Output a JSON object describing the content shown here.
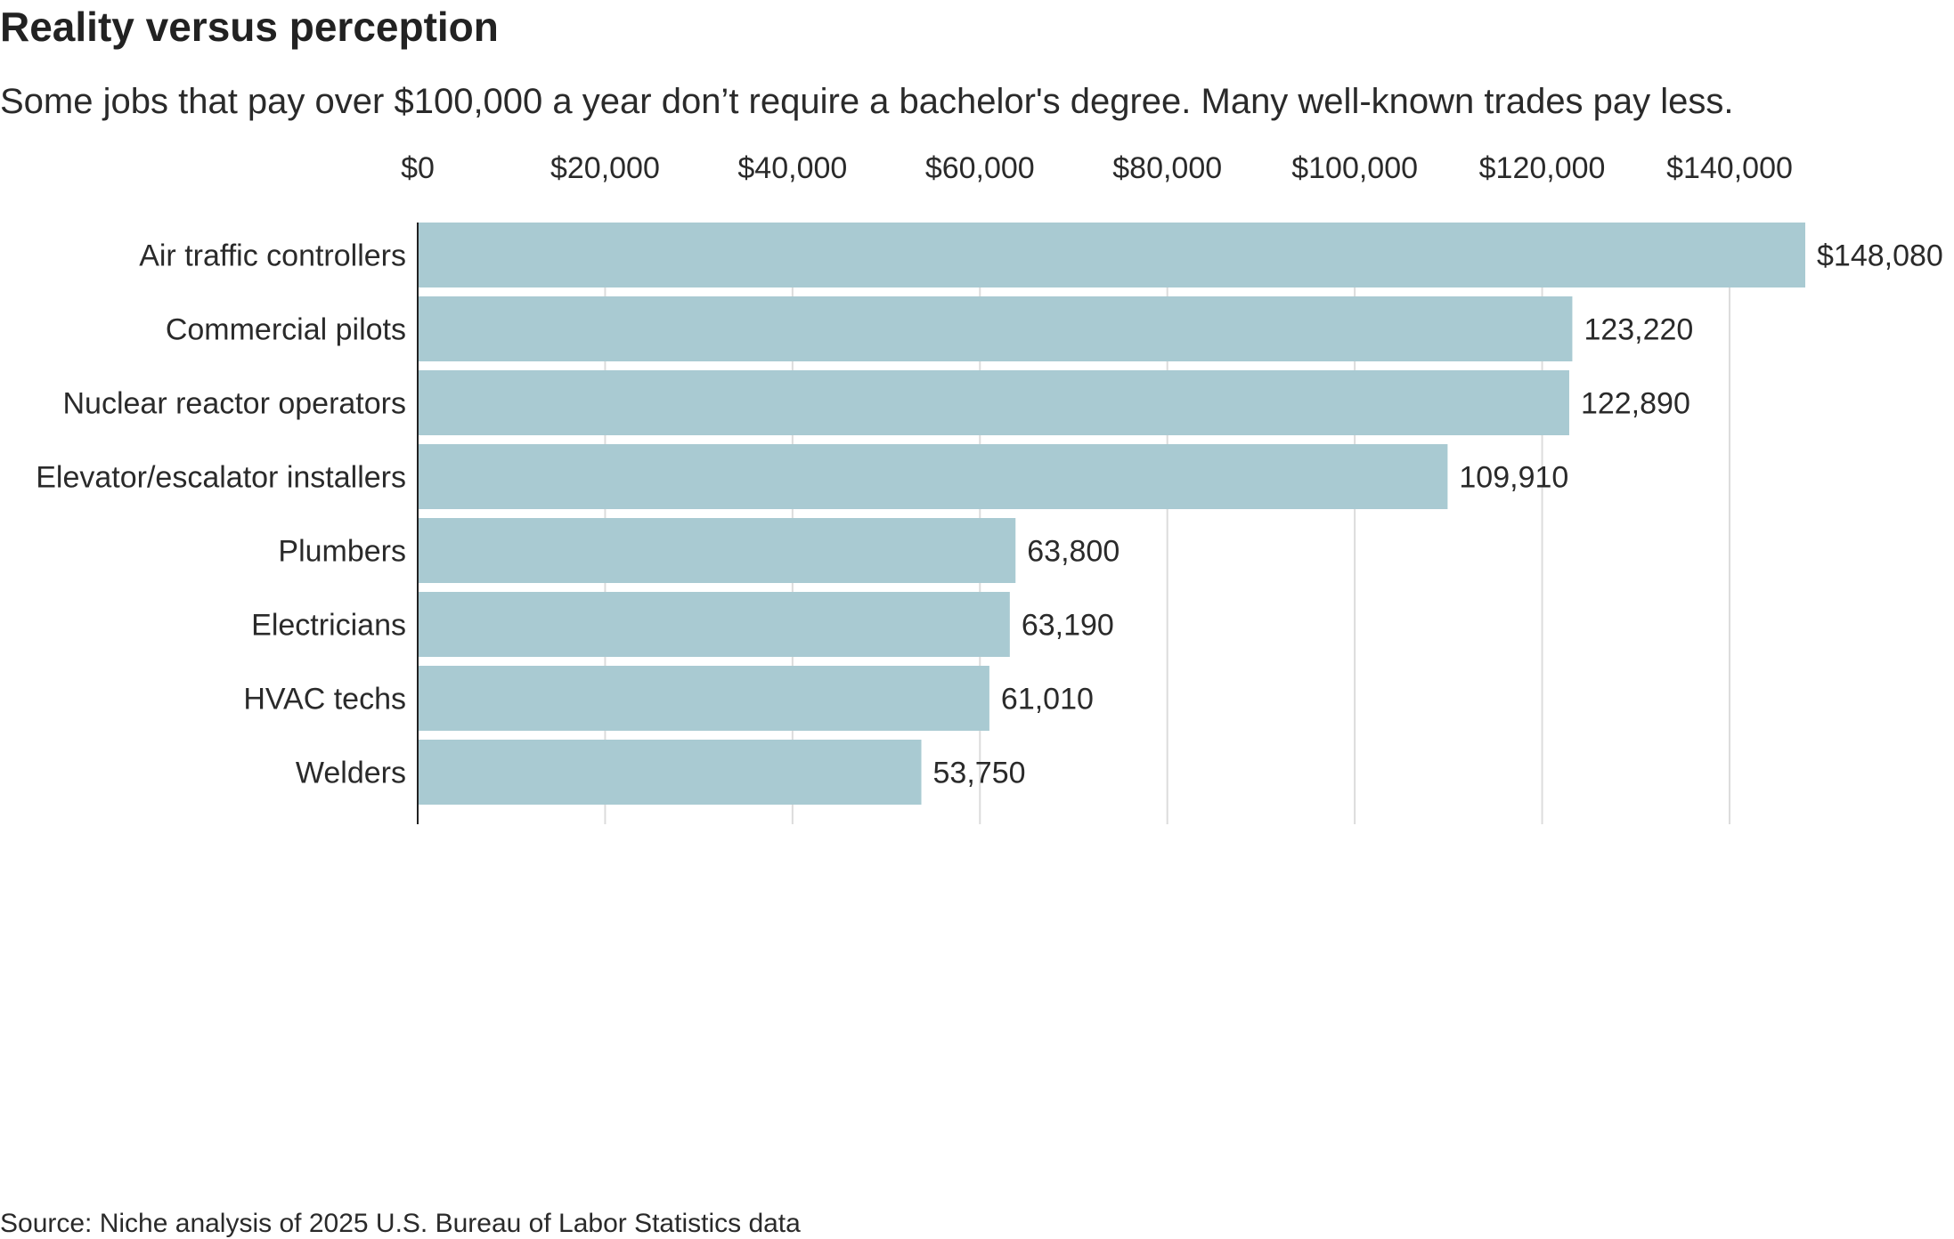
{
  "chart_data": {
    "type": "bar",
    "orientation": "horizontal",
    "title": "Reality versus perception",
    "subtitle": "Some jobs that pay over $100,000 a year don’t require a bachelor's degree. Many well-known trades pay less.",
    "categories": [
      "Air traffic controllers",
      "Commercial pilots",
      "Nuclear reactor operators",
      "Elevator/escalator installers",
      "Plumbers",
      "Electricians",
      "HVAC techs",
      "Welders"
    ],
    "values": [
      148080,
      123220,
      122890,
      109910,
      63800,
      63190,
      61010,
      53750
    ],
    "value_labels": [
      "$148,080",
      "123,220",
      "122,890",
      "109,910",
      "63,800",
      "63,190",
      "61,010",
      "53,750"
    ],
    "x_ticks": [
      0,
      20000,
      40000,
      60000,
      80000,
      100000,
      120000,
      140000
    ],
    "x_tick_labels": [
      "$0",
      "$20,000",
      "$40,000",
      "$60,000",
      "$80,000",
      "$100,000",
      "$120,000",
      "$140,000"
    ],
    "xlim": [
      0,
      148080
    ],
    "axis_position": "top",
    "grid": true,
    "xlabel": "",
    "ylabel": "",
    "source": "Source: Niche analysis of 2025 U.S. Bureau of Labor Statistics data"
  },
  "colors": {
    "bar": "#a9cad2",
    "grid": "#dcdcdc",
    "axis": "#222222",
    "text": "#2a2a2a"
  }
}
